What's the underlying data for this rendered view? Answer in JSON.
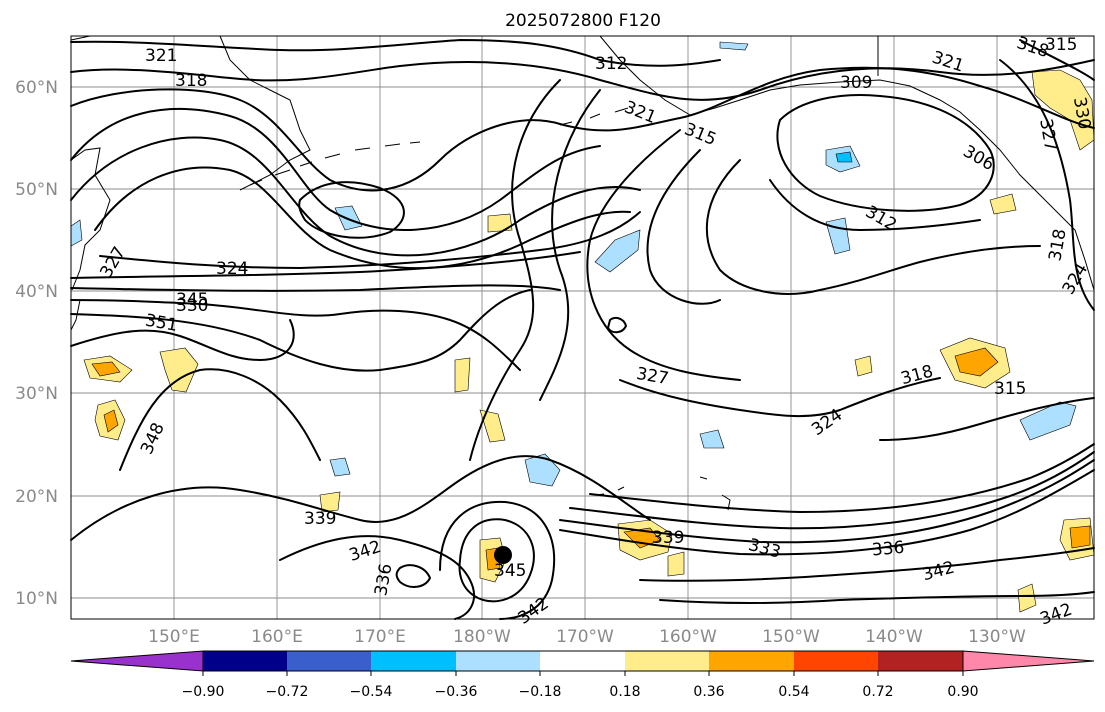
{
  "title": "2025072800 F120",
  "lat_labels": [
    "60°N",
    "50°N",
    "40°N",
    "30°N",
    "20°N",
    "10°N"
  ],
  "lon_labels": [
    "150°E",
    "160°E",
    "170°E",
    "180°W",
    "170°W",
    "160°W",
    "150°W",
    "140°W",
    "130°W"
  ],
  "contour_labels": [
    "321",
    "318",
    "312",
    "309",
    "321",
    "318",
    "315",
    "321",
    "315",
    "327",
    "330",
    "306",
    "312",
    "318",
    "324",
    "327",
    "324",
    "330",
    "345",
    "351",
    "348",
    "327",
    "324",
    "318",
    "315",
    "339",
    "342",
    "336",
    "345",
    "342",
    "339",
    "333",
    "336",
    "342",
    "342"
  ],
  "colorbar": {
    "ticks": [
      "−0.90",
      "−0.72",
      "−0.54",
      "−0.36",
      "−0.18",
      "0.18",
      "0.36",
      "0.54",
      "0.72",
      "0.90"
    ],
    "colors": [
      "#9932CC",
      "#00008B",
      "#3A5FCD",
      "#00BFFF",
      "#ADDFFF",
      "#FFFFFF",
      "#FFEC8B",
      "#FFA500",
      "#FF4500",
      "#B22222",
      "#FF88AA"
    ]
  },
  "marker": "storm-center"
}
